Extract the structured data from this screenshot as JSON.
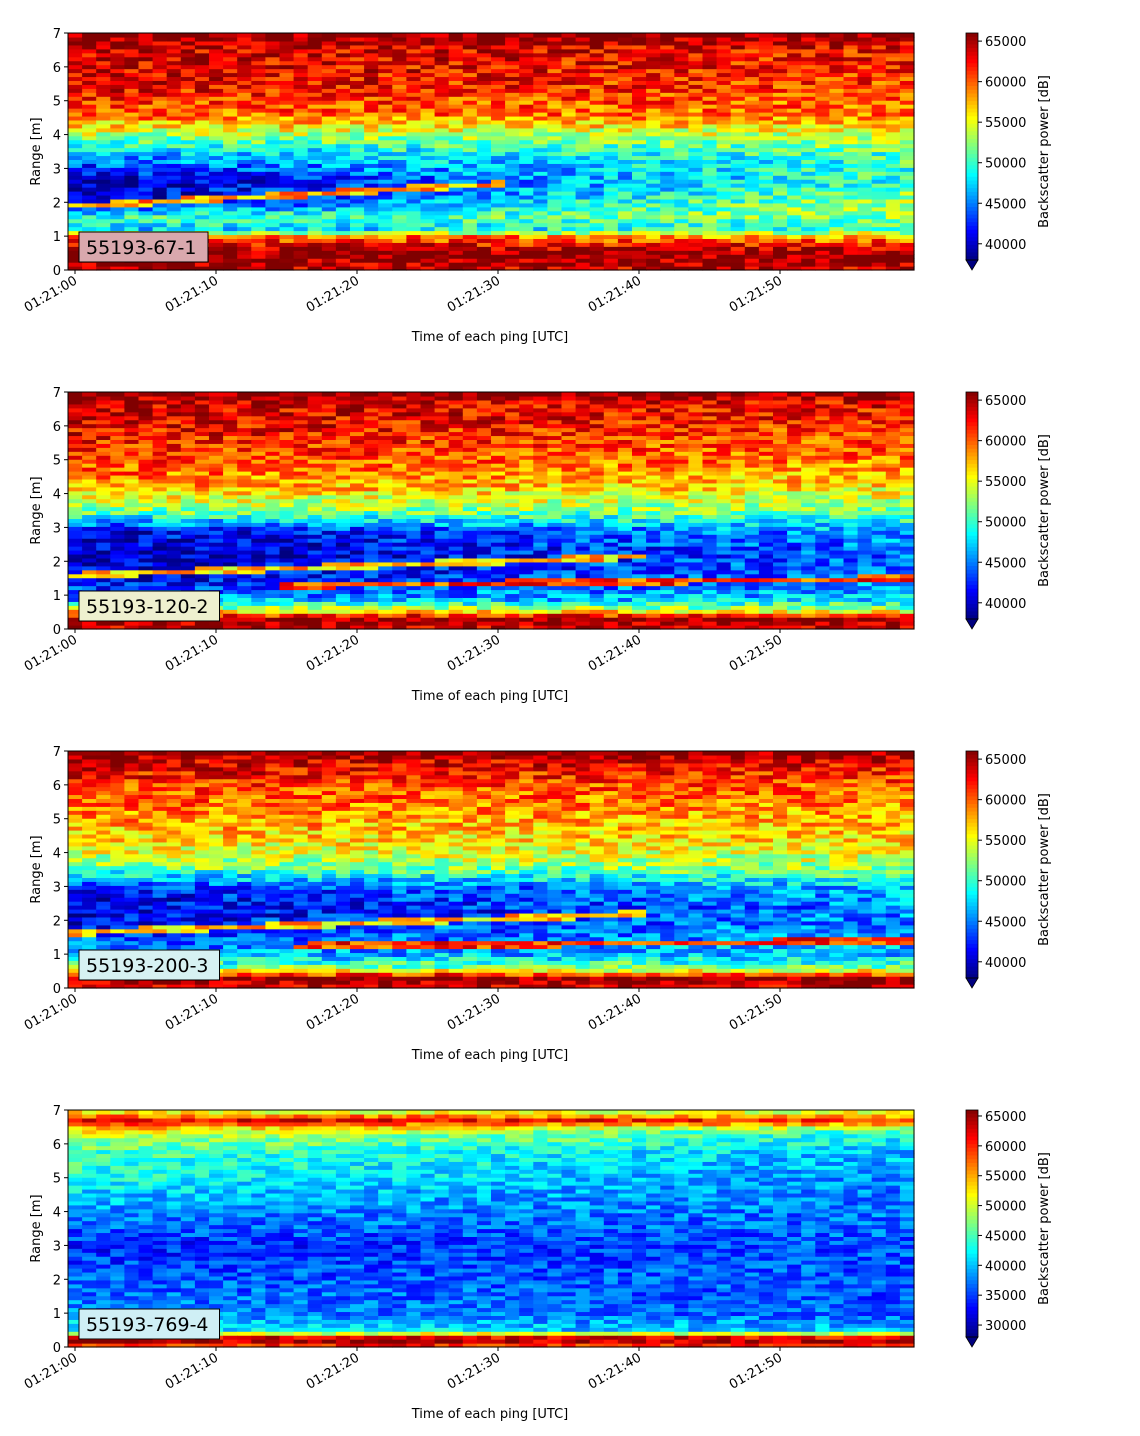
{
  "chart_data": [
    {
      "type": "heatmap",
      "label": "55193-67-1",
      "xlabel": "Time of each ping [UTC]",
      "ylabel": "Range [m]",
      "colorbar_label": "Backscatter power [dB]",
      "colormap": "jet",
      "label_box_color": "#d9a8ad",
      "x_ticks": [
        "01:21:00",
        "01:21:10",
        "01:21:20",
        "01:21:30",
        "01:21:40",
        "01:21:50"
      ],
      "x_range": [
        "01:21:00",
        "01:21:59"
      ],
      "y_ticks": [
        0,
        1,
        2,
        3,
        4,
        5,
        6,
        7
      ],
      "ylim": [
        0,
        7
      ],
      "clim": [
        38000,
        66000
      ],
      "colorbar_ticks": [
        40000,
        45000,
        50000,
        55000,
        60000,
        65000
      ],
      "profile": {
        "range_m": [
          0.05,
          0.5,
          1.0,
          1.2,
          1.6,
          2.0,
          2.6,
          3.4,
          4.0,
          4.6,
          5.5,
          6.5,
          6.95
        ],
        "power_early": [
          64000,
          66000,
          60000,
          47000,
          50000,
          40000,
          39000,
          46000,
          53000,
          60000,
          63000,
          64000,
          66000
        ],
        "power_late": [
          64000,
          66000,
          58000,
          50000,
          52000,
          54000,
          50000,
          50000,
          54000,
          59000,
          61000,
          62000,
          66000
        ]
      },
      "layers": [
        {
          "t0_s": 0,
          "r0_m": 1.9,
          "t1_s": 30,
          "r1_m": 2.55,
          "power": 58000
        }
      ]
    },
    {
      "type": "heatmap",
      "label": "55193-120-2",
      "xlabel": "Time of each ping [UTC]",
      "ylabel": "Range [m]",
      "colorbar_label": "Backscatter power [dB]",
      "colormap": "jet",
      "label_box_color": "#eef0cf",
      "x_ticks": [
        "01:21:00",
        "01:21:10",
        "01:21:20",
        "01:21:30",
        "01:21:40",
        "01:21:50"
      ],
      "x_range": [
        "01:21:00",
        "01:21:59"
      ],
      "y_ticks": [
        0,
        1,
        2,
        3,
        4,
        5,
        6,
        7
      ],
      "ylim": [
        0,
        7
      ],
      "clim": [
        38000,
        66000
      ],
      "colorbar_ticks": [
        40000,
        45000,
        50000,
        55000,
        60000,
        65000
      ],
      "profile": {
        "range_m": [
          0.05,
          0.3,
          0.6,
          0.9,
          1.5,
          2.2,
          2.9,
          3.5,
          4.2,
          5.0,
          6.0,
          6.7,
          6.95
        ],
        "power_early": [
          64000,
          66000,
          54000,
          45000,
          41000,
          39500,
          41000,
          52000,
          58000,
          61000,
          63000,
          64000,
          66000
        ],
        "power_late": [
          64000,
          66000,
          53000,
          47000,
          45000,
          44000,
          46000,
          52000,
          56000,
          59000,
          61000,
          63000,
          66000
        ]
      },
      "layers": [
        {
          "t0_s": 0,
          "r0_m": 1.6,
          "t1_s": 40,
          "r1_m": 2.15,
          "power": 57000
        },
        {
          "t0_s": 15,
          "r0_m": 1.3,
          "t1_s": 59,
          "r1_m": 1.5,
          "power": 61000
        }
      ]
    },
    {
      "type": "heatmap",
      "label": "55193-200-3",
      "xlabel": "Time of each ping [UTC]",
      "ylabel": "Range [m]",
      "colorbar_label": "Backscatter power [dB]",
      "colormap": "jet",
      "label_box_color": "#d6f1f2",
      "x_ticks": [
        "01:21:00",
        "01:21:10",
        "01:21:20",
        "01:21:30",
        "01:21:40",
        "01:21:50"
      ],
      "x_range": [
        "01:21:00",
        "01:21:59"
      ],
      "y_ticks": [
        0,
        1,
        2,
        3,
        4,
        5,
        6,
        7
      ],
      "ylim": [
        0,
        7
      ],
      "clim": [
        38000,
        66000
      ],
      "colorbar_ticks": [
        40000,
        45000,
        50000,
        55000,
        60000,
        65000
      ],
      "profile": {
        "range_m": [
          0.05,
          0.3,
          0.6,
          1.0,
          1.6,
          2.3,
          3.0,
          3.6,
          4.3,
          5.2,
          6.0,
          6.7,
          6.95
        ],
        "power_early": [
          64000,
          66000,
          52000,
          46000,
          43000,
          40000,
          42000,
          52000,
          56000,
          59000,
          61000,
          64000,
          66000
        ],
        "power_late": [
          64000,
          66000,
          52000,
          47000,
          46000,
          45000,
          47000,
          53000,
          56000,
          58000,
          60000,
          63000,
          66000
        ]
      },
      "layers": [
        {
          "t0_s": 0,
          "r0_m": 1.65,
          "t1_s": 40,
          "r1_m": 2.2,
          "power": 57000
        },
        {
          "t0_s": 16,
          "r0_m": 1.25,
          "t1_s": 59,
          "r1_m": 1.4,
          "power": 61000
        }
      ]
    },
    {
      "type": "heatmap",
      "label": "55193-769-4",
      "xlabel": "Time of each ping [UTC]",
      "ylabel": "Range [m]",
      "colorbar_label": "Backscatter power [dB]",
      "colormap": "jet",
      "label_box_color": "#cfeff5",
      "x_ticks": [
        "01:21:00",
        "01:21:10",
        "01:21:20",
        "01:21:30",
        "01:21:40",
        "01:21:50"
      ],
      "x_range": [
        "01:21:00",
        "01:21:59"
      ],
      "y_ticks": [
        0,
        1,
        2,
        3,
        4,
        5,
        6,
        7
      ],
      "ylim": [
        0,
        7
      ],
      "clim": [
        28000,
        66000
      ],
      "colorbar_ticks": [
        30000,
        35000,
        40000,
        45000,
        50000,
        55000,
        60000,
        65000
      ],
      "profile": {
        "range_m": [
          0.05,
          0.25,
          0.5,
          1.0,
          2.0,
          3.0,
          4.0,
          5.0,
          5.8,
          6.4,
          6.7,
          6.95
        ],
        "power_early": [
          60000,
          66000,
          42000,
          38000,
          36000,
          34000,
          38000,
          43000,
          45000,
          52000,
          63000,
          52000
        ],
        "power_late": [
          60000,
          66000,
          40000,
          36000,
          36000,
          36000,
          37000,
          38000,
          40000,
          44000,
          60000,
          50000
        ]
      },
      "layers": []
    }
  ]
}
